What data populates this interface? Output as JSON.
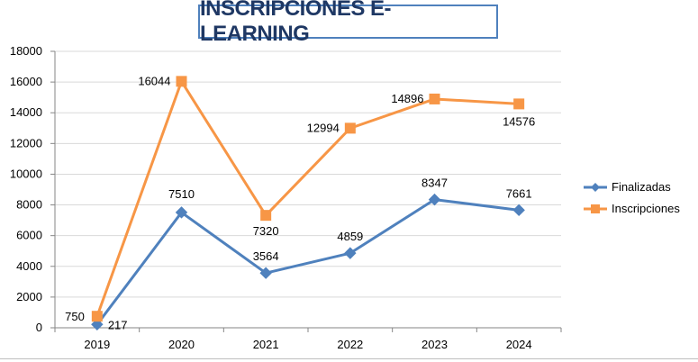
{
  "chart_data": {
    "type": "line",
    "title": "INSCRIPCIONES E-LEARNING",
    "categories": [
      "2019",
      "2020",
      "2021",
      "2022",
      "2023",
      "2024"
    ],
    "ylim": [
      0,
      18000
    ],
    "yticks": [
      0,
      2000,
      4000,
      6000,
      8000,
      10000,
      12000,
      14000,
      16000,
      18000
    ],
    "grid": true,
    "legend_position": "right",
    "series": [
      {
        "name": "Finalizadas",
        "values": [
          217,
          7510,
          3564,
          4859,
          8347,
          7661
        ],
        "color": "#4f81bd",
        "marker": "diamond"
      },
      {
        "name": "Inscripciones",
        "values": [
          750,
          16044,
          7320,
          12994,
          14896,
          14576
        ],
        "color": "#f79646",
        "marker": "square"
      }
    ]
  }
}
